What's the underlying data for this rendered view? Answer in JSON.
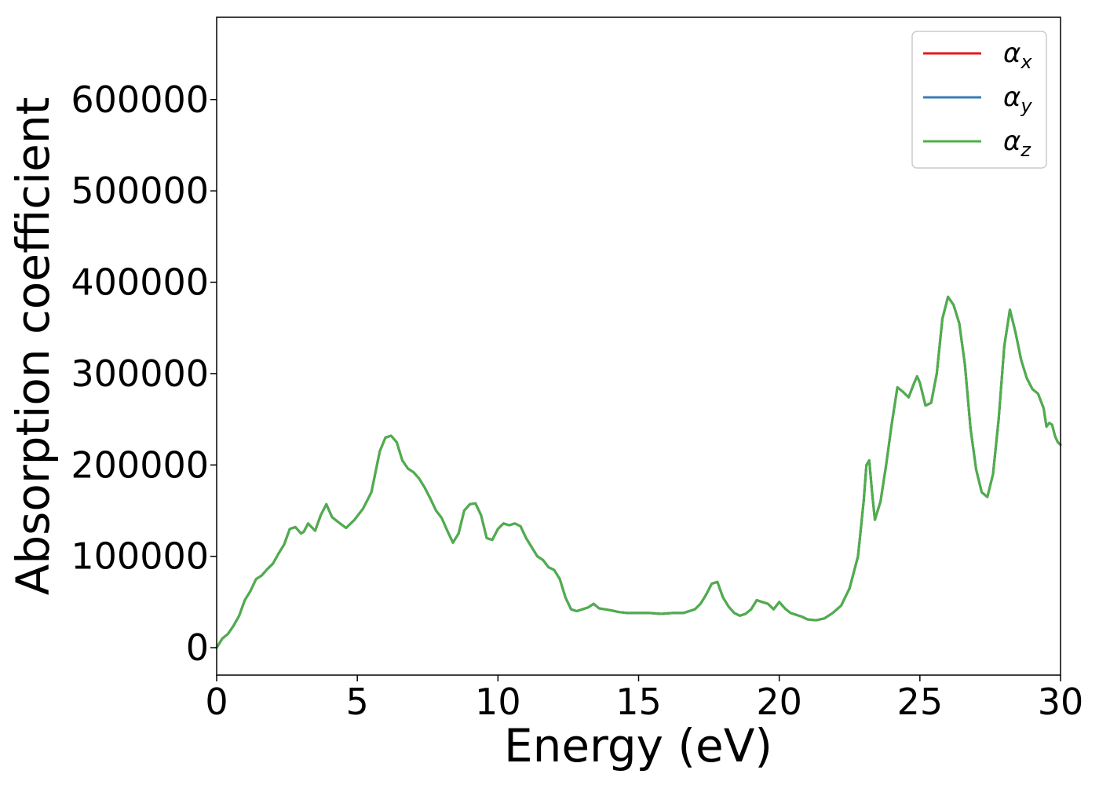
{
  "chart_data": {
    "type": "line",
    "title": "",
    "xlabel": "Energy (eV)",
    "ylabel": "Absorption coefficient",
    "xlim": [
      0,
      30
    ],
    "ylim": [
      -30000,
      690000
    ],
    "xticks": [
      0,
      5,
      10,
      15,
      20,
      25,
      30
    ],
    "xtick_labels": [
      "0",
      "5",
      "10",
      "15",
      "20",
      "25",
      "30"
    ],
    "yticks": [
      0,
      100000,
      200000,
      300000,
      400000,
      500000,
      600000
    ],
    "ytick_labels": [
      "0",
      "100000",
      "200000",
      "300000",
      "400000",
      "500000",
      "600000"
    ],
    "grid": false,
    "legend_position": "top-right",
    "x": [
      0,
      0.2,
      0.4,
      0.6,
      0.8,
      1.0,
      1.2,
      1.4,
      1.6,
      1.8,
      2.0,
      2.2,
      2.4,
      2.6,
      2.8,
      3.0,
      3.1,
      3.25,
      3.5,
      3.7,
      3.9,
      4.1,
      4.3,
      4.6,
      4.9,
      5.2,
      5.5,
      5.8,
      6.0,
      6.2,
      6.4,
      6.6,
      6.8,
      7.0,
      7.2,
      7.4,
      7.6,
      7.8,
      8.0,
      8.2,
      8.4,
      8.6,
      8.8,
      9.0,
      9.2,
      9.4,
      9.6,
      9.8,
      10.0,
      10.2,
      10.4,
      10.6,
      10.8,
      11.0,
      11.2,
      11.4,
      11.6,
      11.8,
      12.0,
      12.2,
      12.4,
      12.6,
      12.8,
      13.0,
      13.2,
      13.4,
      13.6,
      13.8,
      14.0,
      14.3,
      14.6,
      15.0,
      15.4,
      15.8,
      16.2,
      16.6,
      17.0,
      17.2,
      17.4,
      17.6,
      17.8,
      18.0,
      18.2,
      18.4,
      18.6,
      18.8,
      19.0,
      19.2,
      19.4,
      19.6,
      19.8,
      20.0,
      20.2,
      20.4,
      20.6,
      20.8,
      21.0,
      21.3,
      21.6,
      21.9,
      22.2,
      22.5,
      22.8,
      23.0,
      23.1,
      23.2,
      23.3,
      23.4,
      23.6,
      23.8,
      24.0,
      24.2,
      24.4,
      24.6,
      24.8,
      24.9,
      25.0,
      25.2,
      25.4,
      25.6,
      25.8,
      26.0,
      26.2,
      26.4,
      26.6,
      26.8,
      27.0,
      27.2,
      27.4,
      27.6,
      27.8,
      28.0,
      28.2,
      28.4,
      28.6,
      28.8,
      29.0,
      29.2,
      29.4,
      29.5,
      29.6,
      29.7,
      29.8,
      29.9,
      30.0
    ],
    "series": [
      {
        "name": "α_x",
        "color": "#e41a1c",
        "values": [
          0,
          10000,
          15000,
          24000,
          35000,
          52000,
          62000,
          75000,
          79000,
          86000,
          92000,
          103000,
          113000,
          130000,
          132000,
          125000,
          127000,
          136000,
          128000,
          145000,
          157000,
          143000,
          138000,
          131000,
          140000,
          152000,
          170000,
          215000,
          230000,
          232000,
          225000,
          205000,
          196000,
          192000,
          185000,
          175000,
          163000,
          150000,
          142000,
          128000,
          115000,
          125000,
          150000,
          157000,
          158000,
          145000,
          120000,
          118000,
          130000,
          136000,
          134000,
          136000,
          133000,
          120000,
          110000,
          100000,
          96000,
          88000,
          85000,
          75000,
          55000,
          42000,
          40000,
          42000,
          44000,
          48000,
          43000,
          42000,
          41000,
          39000,
          38000,
          38000,
          38000,
          37000,
          38000,
          38000,
          42000,
          48000,
          58000,
          70000,
          72000,
          55000,
          45000,
          38000,
          35000,
          37000,
          42000,
          52000,
          50000,
          48000,
          42000,
          50000,
          43000,
          38000,
          36000,
          34000,
          31000,
          30000,
          32000,
          38000,
          46000,
          65000,
          100000,
          160000,
          200000,
          205000,
          170000,
          140000,
          160000,
          200000,
          245000,
          285000,
          280000,
          274000,
          290000,
          297000,
          290000,
          265000,
          268000,
          300000,
          360000,
          384000,
          375000,
          355000,
          310000,
          240000,
          195000,
          170000,
          165000,
          190000,
          250000,
          330000,
          370000,
          345000,
          315000,
          295000,
          283000,
          278000,
          262000,
          242000,
          246000,
          244000,
          232000,
          225000,
          222000
        ]
      },
      {
        "name": "α_y",
        "color": "#377eb8",
        "values": [
          0,
          10000,
          15000,
          24000,
          35000,
          52000,
          62000,
          75000,
          79000,
          86000,
          92000,
          103000,
          113000,
          130000,
          132000,
          125000,
          127000,
          136000,
          128000,
          145000,
          157000,
          143000,
          138000,
          131000,
          140000,
          152000,
          170000,
          215000,
          230000,
          232000,
          225000,
          205000,
          196000,
          192000,
          185000,
          175000,
          163000,
          150000,
          142000,
          128000,
          115000,
          125000,
          150000,
          157000,
          158000,
          145000,
          120000,
          118000,
          130000,
          136000,
          134000,
          136000,
          133000,
          120000,
          110000,
          100000,
          96000,
          88000,
          85000,
          75000,
          55000,
          42000,
          40000,
          42000,
          44000,
          48000,
          43000,
          42000,
          41000,
          39000,
          38000,
          38000,
          38000,
          37000,
          38000,
          38000,
          42000,
          48000,
          58000,
          70000,
          72000,
          55000,
          45000,
          38000,
          35000,
          37000,
          42000,
          52000,
          50000,
          48000,
          42000,
          50000,
          43000,
          38000,
          36000,
          34000,
          31000,
          30000,
          32000,
          38000,
          46000,
          65000,
          100000,
          160000,
          200000,
          205000,
          170000,
          140000,
          160000,
          200000,
          245000,
          285000,
          280000,
          274000,
          290000,
          297000,
          290000,
          265000,
          268000,
          300000,
          360000,
          384000,
          375000,
          355000,
          310000,
          240000,
          195000,
          170000,
          165000,
          190000,
          250000,
          330000,
          370000,
          345000,
          315000,
          295000,
          283000,
          278000,
          262000,
          242000,
          246000,
          244000,
          232000,
          225000,
          222000
        ]
      },
      {
        "name": "α_z",
        "color": "#4daf4a",
        "values": [
          0,
          10000,
          15000,
          24000,
          35000,
          52000,
          62000,
          75000,
          79000,
          86000,
          92000,
          103000,
          113000,
          130000,
          132000,
          125000,
          127000,
          136000,
          128000,
          145000,
          157000,
          143000,
          138000,
          131000,
          140000,
          152000,
          170000,
          215000,
          230000,
          232000,
          225000,
          205000,
          196000,
          192000,
          185000,
          175000,
          163000,
          150000,
          142000,
          128000,
          115000,
          125000,
          150000,
          157000,
          158000,
          145000,
          120000,
          118000,
          130000,
          136000,
          134000,
          136000,
          133000,
          120000,
          110000,
          100000,
          96000,
          88000,
          85000,
          75000,
          55000,
          42000,
          40000,
          42000,
          44000,
          48000,
          43000,
          42000,
          41000,
          39000,
          38000,
          38000,
          38000,
          37000,
          38000,
          38000,
          42000,
          48000,
          58000,
          70000,
          72000,
          55000,
          45000,
          38000,
          35000,
          37000,
          42000,
          52000,
          50000,
          48000,
          42000,
          50000,
          43000,
          38000,
          36000,
          34000,
          31000,
          30000,
          32000,
          38000,
          46000,
          65000,
          100000,
          160000,
          200000,
          205000,
          170000,
          140000,
          160000,
          200000,
          245000,
          285000,
          280000,
          274000,
          290000,
          297000,
          290000,
          265000,
          268000,
          300000,
          360000,
          384000,
          375000,
          355000,
          310000,
          240000,
          195000,
          170000,
          165000,
          190000,
          250000,
          330000,
          370000,
          345000,
          315000,
          295000,
          283000,
          278000,
          262000,
          242000,
          246000,
          244000,
          232000,
          225000,
          222000
        ]
      }
    ],
    "legend": [
      {
        "symbol": "α",
        "subscript": "x"
      },
      {
        "symbol": "α",
        "subscript": "y"
      },
      {
        "symbol": "α",
        "subscript": "z"
      }
    ]
  }
}
